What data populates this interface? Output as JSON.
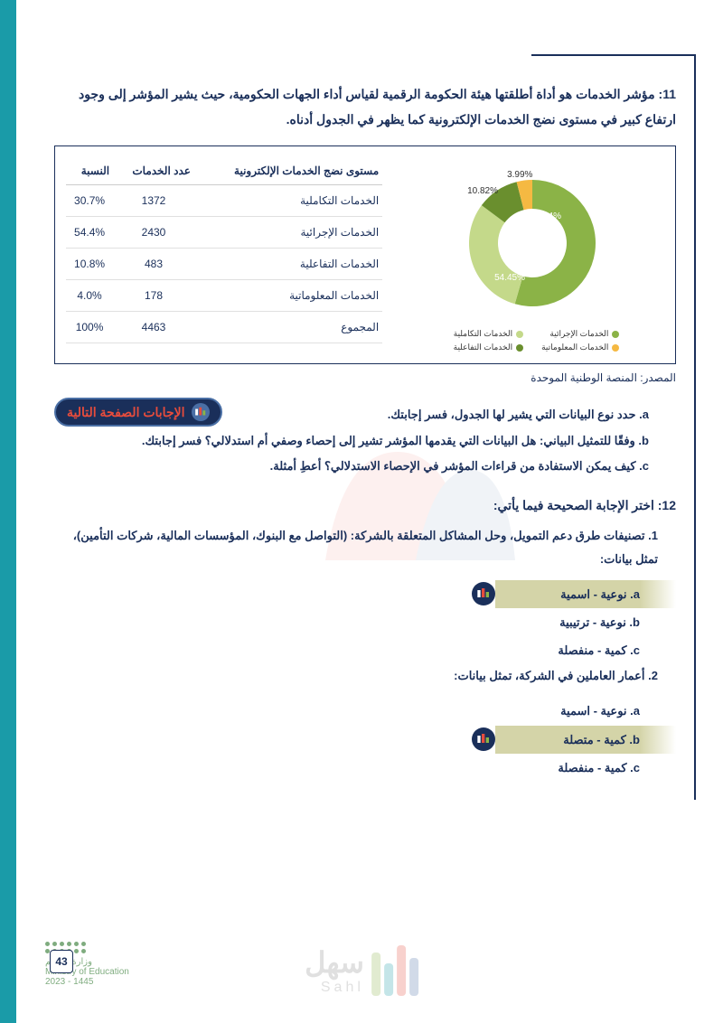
{
  "q11": {
    "intro": "11: مؤشر الخدمات هو أداة أطلقتها هيئة الحكومة الرقمية لقياس أداء الجهات الحكومية، حيث يشير المؤشر إلى وجود ارتفاع كبير في مستوى نضج الخدمات الإلكترونية كما يظهر في الجدول أدناه."
  },
  "table": {
    "headers": {
      "level": "مستوى نضج الخدمات الإلكترونية",
      "count": "عدد الخدمات",
      "pct": "النسبة"
    },
    "rows": [
      {
        "level": "الخدمات التكاملية",
        "count": "1372",
        "pct": "30.7%"
      },
      {
        "level": "الخدمات الإجرائية",
        "count": "2430",
        "pct": "54.4%"
      },
      {
        "level": "الخدمات التفاعلية",
        "count": "483",
        "pct": "10.8%"
      },
      {
        "level": "الخدمات المعلوماتية",
        "count": "178",
        "pct": "4.0%"
      },
      {
        "level": "المجموع",
        "count": "4463",
        "pct": "100%"
      }
    ]
  },
  "chart": {
    "type": "donut",
    "slices": [
      {
        "label": "الخدمات الإجرائية",
        "value": 54.45,
        "color": "#8bb347",
        "display": "54.45%"
      },
      {
        "label": "الخدمات التكاملية",
        "value": 30.74,
        "color": "#c4d98a",
        "display": "30.74%"
      },
      {
        "label": "الخدمات التفاعلية",
        "value": 10.82,
        "color": "#6a8f2e",
        "display": "10.82%"
      },
      {
        "label": "الخدمات المعلوماتية",
        "value": 3.99,
        "color": "#f5b942",
        "display": "3.99%"
      }
    ],
    "legend": [
      {
        "label": "الخدمات الإجرائية",
        "color": "#8bb347"
      },
      {
        "label": "الخدمات التكاملية",
        "color": "#c4d98a"
      },
      {
        "label": "الخدمات المعلوماتية",
        "color": "#f5b942"
      },
      {
        "label": "الخدمات التفاعلية",
        "color": "#6a8f2e"
      }
    ]
  },
  "source": "المصدر: المنصة الوطنية الموحدة",
  "answers_button": "الإجابات  الصفحة التالية",
  "subq": {
    "a": "a. حدد نوع البيانات التي يشير لها الجدول، فسر إجابتك.",
    "b": "b. وفقًا للتمثيل البياني: هل البيانات التي يقدمها المؤشر تشير إلى إحصاء وصفي أم استدلالي؟ فسر إجابتك.",
    "c": "c. كيف يمكن الاستفادة من قراءات المؤشر في الإحصاء الاستدلالي؟ أعطِ أمثلة."
  },
  "q12": {
    "title": "12: اختر الإجابة الصحيحة فيما يأتي:",
    "item1": "1. تصنيفات طرق دعم التمويل، وحل المشاكل المتعلقة بالشركة: (التواصل مع البنوك، المؤسسات المالية، شركات التأمين)، تمثل بيانات:",
    "opts1": {
      "a": "a. نوعية - اسمية",
      "b": "b. نوعية - ترتيبية",
      "c": "c. كمية - منفصلة"
    },
    "item2": "2. أعمار العاملين في الشركة، تمثل بيانات:",
    "opts2": {
      "a": "a. نوعية - اسمية",
      "b": "b. كمية - متصلة",
      "c": "c. كمية - منفصلة"
    }
  },
  "ministry": {
    "ar": "وزارة التعليم",
    "en": "Ministry of Education",
    "year": "2023 - 1445"
  },
  "page_number": "43",
  "watermark": {
    "text": "سهل",
    "sub": "Sahl"
  },
  "colors": {
    "primary": "#1a2f5a",
    "accent": "#1a9ba8",
    "highlight": "#d4d4a8",
    "answer_red": "#e74c3c"
  }
}
